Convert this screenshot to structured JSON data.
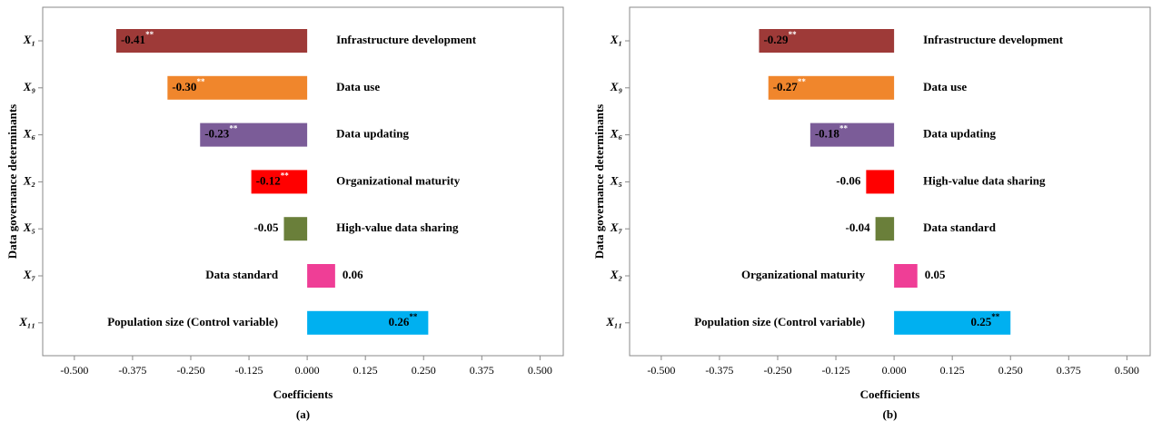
{
  "chart_data": [
    {
      "type": "barh",
      "panel_label": "(a)",
      "xlabel": "Coefficients",
      "ylabel": "Data governance determinants",
      "categories": [
        "X₁",
        "X₉",
        "X₆",
        "X₂",
        "X₅",
        "X₇",
        "X₁₁"
      ],
      "names": [
        "Infrastructure development",
        "Data use",
        "Data updating",
        "Organizational maturity",
        "High-value data sharing",
        "Data standard",
        "Population size (Control variable)"
      ],
      "values": [
        -0.41,
        -0.3,
        -0.23,
        -0.12,
        -0.05,
        0.06,
        0.26
      ],
      "value_labels": [
        "-0.41",
        "-0.30",
        "-0.23",
        "-0.12",
        "-0.05",
        "0.06",
        "0.26"
      ],
      "significance": [
        "**",
        "**",
        "**",
        "**",
        null,
        null,
        "**"
      ],
      "colors": [
        "#9e3a38",
        "#f0862c",
        "#7b5c98",
        "#ff0000",
        "#6a7f3a",
        "#ef3e96",
        "#00b0f0"
      ],
      "xlim": [
        -0.568,
        0.55
      ],
      "xticks": [
        {
          "value": -0.5,
          "label": "-0.500"
        },
        {
          "value": -0.375,
          "label": "-0.375"
        },
        {
          "value": -0.25,
          "label": "-0.250"
        },
        {
          "value": -0.125,
          "label": "-0.125"
        },
        {
          "value": 0,
          "label": "0.000"
        },
        {
          "value": 0.125,
          "label": "0.125"
        },
        {
          "value": 0.25,
          "label": "0.250"
        },
        {
          "value": 0.375,
          "label": "0.375"
        },
        {
          "value": 0.5,
          "label": "0.500"
        }
      ]
    },
    {
      "type": "barh",
      "panel_label": "(b)",
      "xlabel": "Coefficients",
      "ylabel": "Data governance determinants",
      "categories": [
        "X₁",
        "X₉",
        "X₆",
        "X₅",
        "X₇",
        "X₂",
        "X₁₁"
      ],
      "names": [
        "Infrastructure development",
        "Data use",
        "Data updating",
        "High-value data sharing",
        "Data standard",
        "Organizational maturity",
        "Population size (Control variable)"
      ],
      "values": [
        -0.29,
        -0.27,
        -0.18,
        -0.06,
        -0.04,
        0.05,
        0.25
      ],
      "value_labels": [
        "-0.29",
        "-0.27",
        "-0.18",
        "-0.06",
        "-0.04",
        "0.05",
        "0.25"
      ],
      "significance": [
        "**",
        "**",
        "**",
        null,
        null,
        null,
        "**"
      ],
      "colors": [
        "#9e3a38",
        "#f0862c",
        "#7b5c98",
        "#ff0000",
        "#6a7f3a",
        "#ef3e96",
        "#00b0f0"
      ],
      "xlim": [
        -0.568,
        0.55
      ],
      "xticks": [
        {
          "value": -0.5,
          "label": "-0.500"
        },
        {
          "value": -0.375,
          "label": "-0.375"
        },
        {
          "value": -0.25,
          "label": "-0.250"
        },
        {
          "value": -0.125,
          "label": "-0.125"
        },
        {
          "value": 0,
          "label": "0.000"
        },
        {
          "value": 0.125,
          "label": "0.125"
        },
        {
          "value": 0.25,
          "label": "0.250"
        },
        {
          "value": 0.375,
          "label": "0.375"
        },
        {
          "value": 0.5,
          "label": "0.500"
        }
      ]
    }
  ]
}
